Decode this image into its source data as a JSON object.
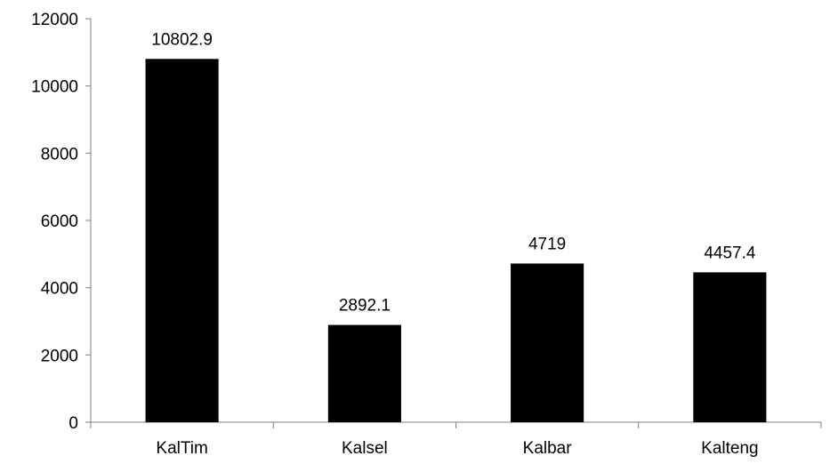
{
  "chart_data": {
    "type": "bar",
    "categories": [
      "KalTim",
      "Kalsel",
      "Kalbar",
      "Kalteng"
    ],
    "values": [
      10802.9,
      2892.1,
      4719,
      4457.4
    ],
    "data_labels": [
      "10802.9",
      "2892.1",
      "4719",
      "4457.4"
    ],
    "title": "",
    "xlabel": "",
    "ylabel": "",
    "ylim": [
      0,
      12000
    ],
    "yticks": [
      0,
      2000,
      4000,
      6000,
      8000,
      10000,
      12000
    ],
    "ytick_labels": [
      "0",
      "2000",
      "4000",
      "6000",
      "8000",
      "10000",
      "12000"
    ],
    "grid": false,
    "legend": "none",
    "bar_color": "#000000"
  }
}
